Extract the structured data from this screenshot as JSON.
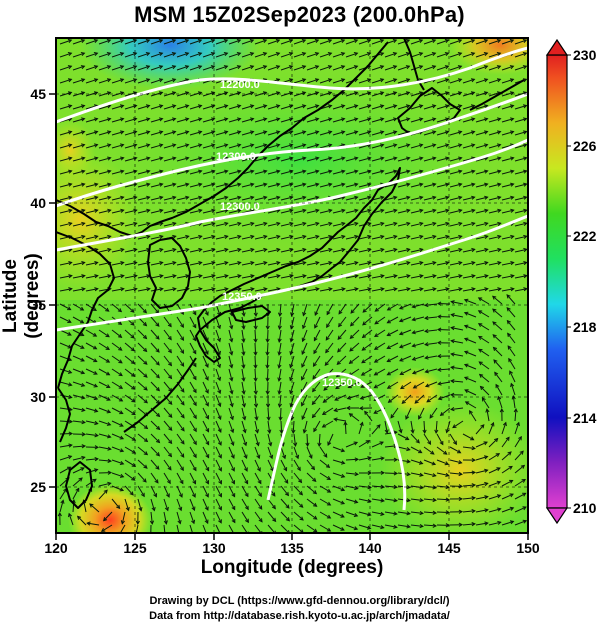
{
  "title": "MSM 15Z02Sep2023 (200.0hPa)",
  "x_axis": {
    "label": "Longitude (degrees)",
    "ticks": [
      "120",
      "125",
      "130",
      "135",
      "140",
      "145",
      "150"
    ]
  },
  "y_axis": {
    "label": "Latitude  (degrees)",
    "ticks": [
      "25",
      "30",
      "35",
      "40",
      "45"
    ]
  },
  "colorbar": {
    "ticks": [
      "230",
      "226",
      "222",
      "218",
      "214",
      "210"
    ],
    "min": 210,
    "max": 230
  },
  "contour_labels": [
    "12200.0",
    "12300.0",
    "12300.0",
    "12350.0",
    "12350.0"
  ],
  "credits": {
    "line1": "Drawing by DCL (https://www.gfd-dennou.org/library/dcl/)",
    "line2": "Data from http://database.rish.kyoto-u.ac.jp/arch/jmadata/"
  },
  "chart_data": {
    "type": "heatmap",
    "title": "MSM 15Z02Sep2023 (200.0hPa)",
    "xlabel": "Longitude (degrees)",
    "ylabel": "Latitude  (degrees)",
    "xlim": [
      120,
      150
    ],
    "ylim": [
      22.4,
      47.6
    ],
    "color_range": [
      210,
      230
    ],
    "overlays": [
      "streamlines",
      "contours",
      "coastlines",
      "grid"
    ],
    "grid": true
  }
}
